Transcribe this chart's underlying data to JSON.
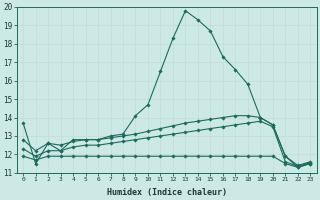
{
  "xlabel": "Humidex (Indice chaleur)",
  "background_color": "#cce9e5",
  "grid_color": "#c4dbd7",
  "line_color": "#1a6b5a",
  "xlim": [
    -0.5,
    23.5
  ],
  "ylim": [
    11,
    20
  ],
  "yticks": [
    11,
    12,
    13,
    14,
    15,
    16,
    17,
    18,
    19,
    20
  ],
  "xticks": [
    0,
    1,
    2,
    3,
    4,
    5,
    6,
    7,
    8,
    9,
    10,
    11,
    12,
    13,
    14,
    15,
    16,
    17,
    18,
    19,
    20,
    21,
    22,
    23
  ],
  "series": [
    {
      "x": [
        0,
        1,
        2,
        3,
        4,
        5,
        6,
        7,
        8,
        9,
        10,
        11,
        12,
        13,
        14,
        15,
        16,
        17,
        18,
        19,
        20,
        21,
        22,
        23
      ],
      "y": [
        13.7,
        11.5,
        12.6,
        12.2,
        12.8,
        12.8,
        12.8,
        13.0,
        13.1,
        14.1,
        14.7,
        16.5,
        18.3,
        19.8,
        19.3,
        18.7,
        17.3,
        16.6,
        15.8,
        14.0,
        13.6,
        11.9,
        11.3,
        11.5
      ]
    },
    {
      "x": [
        0,
        1,
        2,
        3,
        4,
        5,
        6,
        7,
        8,
        9,
        10,
        11,
        12,
        13,
        14,
        15,
        16,
        17,
        18,
        19,
        20,
        21,
        22,
        23
      ],
      "y": [
        12.8,
        12.2,
        12.6,
        12.5,
        12.7,
        12.8,
        12.8,
        12.9,
        13.0,
        13.1,
        13.25,
        13.4,
        13.55,
        13.7,
        13.8,
        13.9,
        14.0,
        14.1,
        14.1,
        14.0,
        13.6,
        11.9,
        11.4,
        11.6
      ]
    },
    {
      "x": [
        0,
        1,
        2,
        3,
        4,
        5,
        6,
        7,
        8,
        9,
        10,
        11,
        12,
        13,
        14,
        15,
        16,
        17,
        18,
        19,
        20,
        21,
        22,
        23
      ],
      "y": [
        12.3,
        11.9,
        12.2,
        12.2,
        12.4,
        12.5,
        12.5,
        12.6,
        12.7,
        12.8,
        12.9,
        13.0,
        13.1,
        13.2,
        13.3,
        13.4,
        13.5,
        13.6,
        13.7,
        13.8,
        13.5,
        11.6,
        11.35,
        11.55
      ]
    },
    {
      "x": [
        0,
        1,
        2,
        3,
        4,
        5,
        6,
        7,
        8,
        9,
        10,
        11,
        12,
        13,
        14,
        15,
        16,
        17,
        18,
        19,
        20,
        21,
        22,
        23
      ],
      "y": [
        11.9,
        11.7,
        11.9,
        11.9,
        11.9,
        11.9,
        11.9,
        11.9,
        11.9,
        11.9,
        11.9,
        11.9,
        11.9,
        11.9,
        11.9,
        11.9,
        11.9,
        11.9,
        11.9,
        11.9,
        11.9,
        11.5,
        11.3,
        11.5
      ]
    }
  ]
}
